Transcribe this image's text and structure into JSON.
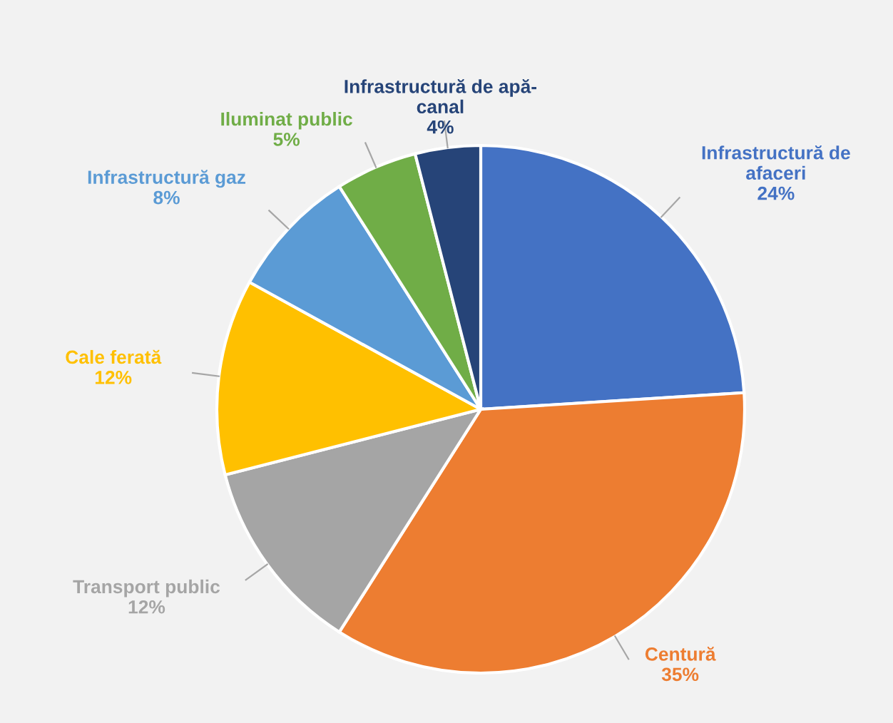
{
  "chart_data": {
    "type": "pie",
    "categories": [
      "Infrastructură de\nafaceri",
      "Centură",
      "Transport public",
      "Cale ferată",
      "Infrastructură gaz",
      "Iluminat public",
      "Infrastructură de apă-\ncanal"
    ],
    "values": [
      24,
      35,
      12,
      12,
      8,
      5,
      4
    ],
    "value_labels": [
      "24%",
      "35%",
      "12%",
      "12%",
      "8%",
      "5%",
      "4%"
    ],
    "colors": [
      "#4472c4",
      "#ed7d31",
      "#a5a5a5",
      "#ffc000",
      "#5b9bd5",
      "#70ad47",
      "#264478"
    ],
    "legend": false
  }
}
